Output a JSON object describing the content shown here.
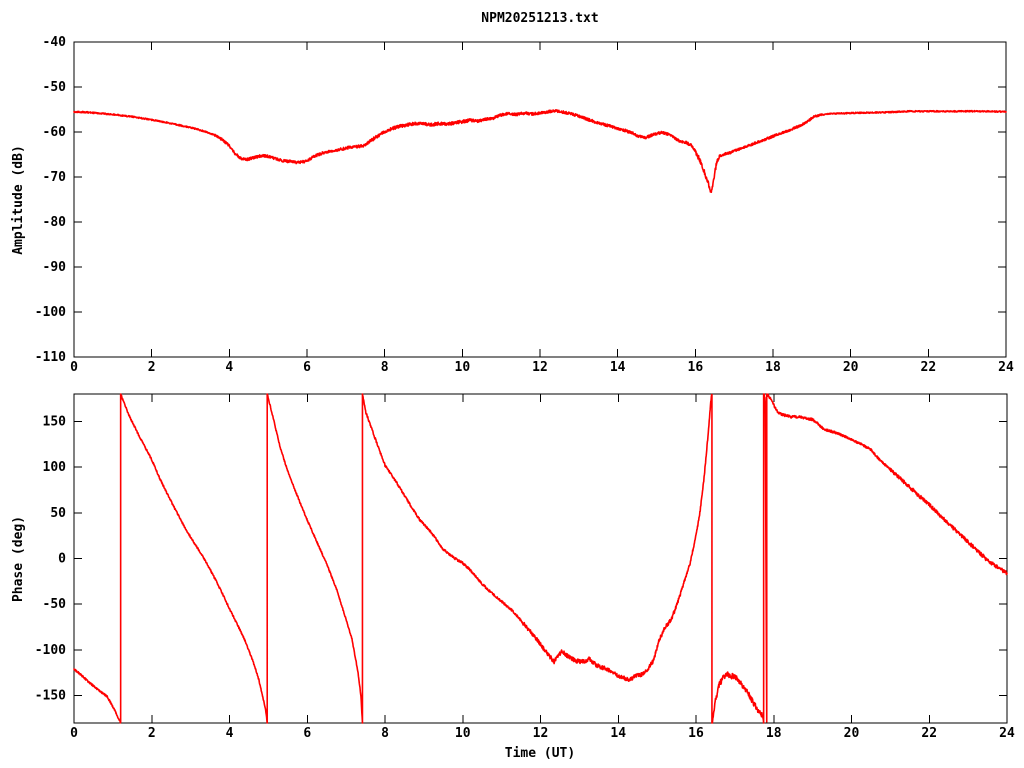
{
  "title": "NPM20251213.txt",
  "colors": {
    "trace": "#ff0000",
    "axis": "#000000",
    "background": "#ffffff"
  },
  "chart_data": [
    {
      "type": "line",
      "title": "NPM20251213.txt",
      "xlabel": "",
      "ylabel": "Amplitude (dB)",
      "xlim": [
        0,
        24
      ],
      "ylim": [
        -110,
        -40
      ],
      "xticks": [
        0,
        2,
        4,
        6,
        8,
        10,
        12,
        14,
        16,
        18,
        20,
        22,
        24
      ],
      "yticks": [
        -110,
        -100,
        -90,
        -80,
        -70,
        -60,
        -50,
        -40
      ],
      "grid": false,
      "legend": "none",
      "series": [
        {
          "name": "amplitude",
          "color": "#ff0000",
          "points": [
            [
              0,
              -55.5
            ],
            [
              0.3,
              -55.6
            ],
            [
              0.6,
              -55.8
            ],
            [
              1,
              -56.1
            ],
            [
              1.5,
              -56.6
            ],
            [
              2,
              -57.3
            ],
            [
              2.5,
              -58.1
            ],
            [
              3,
              -59
            ],
            [
              3.3,
              -59.7
            ],
            [
              3.6,
              -60.6
            ],
            [
              3.8,
              -61.6
            ],
            [
              4,
              -63
            ],
            [
              4.15,
              -64.8
            ],
            [
              4.3,
              -65.9
            ],
            [
              4.45,
              -66.1
            ],
            [
              4.6,
              -65.8
            ],
            [
              4.75,
              -65.4
            ],
            [
              4.9,
              -65.3
            ],
            [
              5.05,
              -65.5
            ],
            [
              5.2,
              -66
            ],
            [
              5.4,
              -66.4
            ],
            [
              5.6,
              -66.6
            ],
            [
              5.8,
              -66.8
            ],
            [
              6,
              -66.4
            ],
            [
              6.15,
              -65.6
            ],
            [
              6.3,
              -65
            ],
            [
              6.5,
              -64.4
            ],
            [
              6.7,
              -64.1
            ],
            [
              6.9,
              -63.8
            ],
            [
              7.1,
              -63.4
            ],
            [
              7.3,
              -63.2
            ],
            [
              7.45,
              -63.1
            ],
            [
              7.6,
              -62.2
            ],
            [
              7.8,
              -61
            ],
            [
              8,
              -59.9
            ],
            [
              8.2,
              -59.2
            ],
            [
              8.4,
              -58.7
            ],
            [
              8.6,
              -58.4
            ],
            [
              8.8,
              -58.1
            ],
            [
              9,
              -58.2
            ],
            [
              9.2,
              -58.4
            ],
            [
              9.4,
              -58.1
            ],
            [
              9.6,
              -58.3
            ],
            [
              9.8,
              -58
            ],
            [
              10,
              -57.7
            ],
            [
              10.2,
              -57.4
            ],
            [
              10.4,
              -57.6
            ],
            [
              10.6,
              -57.2
            ],
            [
              10.8,
              -56.9
            ],
            [
              11,
              -56.2
            ],
            [
              11.2,
              -55.9
            ],
            [
              11.4,
              -56.1
            ],
            [
              11.6,
              -55.8
            ],
            [
              11.8,
              -56
            ],
            [
              12,
              -55.8
            ],
            [
              12.2,
              -55.5
            ],
            [
              12.4,
              -55.3
            ],
            [
              12.6,
              -55.6
            ],
            [
              12.8,
              -55.9
            ],
            [
              13,
              -56.5
            ],
            [
              13.2,
              -57.1
            ],
            [
              13.4,
              -57.7
            ],
            [
              13.6,
              -58.2
            ],
            [
              13.8,
              -58.7
            ],
            [
              14,
              -59.2
            ],
            [
              14.2,
              -59.7
            ],
            [
              14.4,
              -60.3
            ],
            [
              14.55,
              -61
            ],
            [
              14.7,
              -61.3
            ],
            [
              14.85,
              -60.8
            ],
            [
              15,
              -60.4
            ],
            [
              15.15,
              -60.1
            ],
            [
              15.3,
              -60.5
            ],
            [
              15.45,
              -61.2
            ],
            [
              15.6,
              -62.1
            ],
            [
              15.75,
              -62.3
            ],
            [
              15.9,
              -63
            ],
            [
              16,
              -64.3
            ],
            [
              16.1,
              -66
            ],
            [
              16.2,
              -68.2
            ],
            [
              16.3,
              -70.5
            ],
            [
              16.38,
              -72.8
            ],
            [
              16.42,
              -73.3
            ],
            [
              16.48,
              -70
            ],
            [
              16.55,
              -66.8
            ],
            [
              16.62,
              -65.4
            ],
            [
              16.75,
              -64.9
            ],
            [
              16.9,
              -64.6
            ],
            [
              17.1,
              -63.9
            ],
            [
              17.3,
              -63.3
            ],
            [
              17.5,
              -62.6
            ],
            [
              17.7,
              -62
            ],
            [
              17.9,
              -61.3
            ],
            [
              18.1,
              -60.6
            ],
            [
              18.3,
              -60
            ],
            [
              18.5,
              -59.3
            ],
            [
              18.7,
              -58.6
            ],
            [
              18.9,
              -57.6
            ],
            [
              19.05,
              -56.6
            ],
            [
              19.2,
              -56.2
            ],
            [
              19.4,
              -56
            ],
            [
              19.7,
              -55.9
            ],
            [
              20,
              -55.8
            ],
            [
              20.5,
              -55.7
            ],
            [
              21,
              -55.6
            ],
            [
              21.5,
              -55.4
            ],
            [
              22,
              -55.4
            ],
            [
              22.5,
              -55.4
            ],
            [
              23,
              -55.4
            ],
            [
              23.5,
              -55.4
            ],
            [
              24,
              -55.5
            ]
          ],
          "noise_regions": [
            {
              "from": 0,
              "to": 3.6,
              "amp": 0.15
            },
            {
              "from": 3.6,
              "to": 7.5,
              "amp": 0.3
            },
            {
              "from": 7.5,
              "to": 10.5,
              "amp": 0.35
            },
            {
              "from": 10.5,
              "to": 16,
              "amp": 0.3
            },
            {
              "from": 16,
              "to": 16.6,
              "amp": 0.5
            },
            {
              "from": 16.6,
              "to": 19.2,
              "amp": 0.25
            },
            {
              "from": 19.2,
              "to": 24,
              "amp": 0.15
            }
          ]
        }
      ]
    },
    {
      "type": "line",
      "title": "",
      "xlabel": "Time (UT)",
      "ylabel": "Phase (deg)",
      "xlim": [
        0,
        24
      ],
      "ylim": [
        -180,
        180
      ],
      "xticks": [
        0,
        2,
        4,
        6,
        8,
        10,
        12,
        14,
        16,
        18,
        20,
        22,
        24
      ],
      "yticks": [
        -150,
        -100,
        -50,
        0,
        50,
        100,
        150
      ],
      "grid": false,
      "legend": "none",
      "series": [
        {
          "name": "phase",
          "color": "#ff0000",
          "points": [
            [
              0,
              -121
            ],
            [
              0.2,
              -128
            ],
            [
              0.4,
              -136
            ],
            [
              0.55,
              -141
            ],
            [
              0.7,
              -146
            ],
            [
              0.85,
              -151
            ],
            [
              1,
              -162
            ],
            [
              1.1,
              -171
            ],
            [
              1.2,
              -180
            ],
            [
              1.2,
              180
            ],
            [
              1.4,
              158
            ],
            [
              1.7,
              132
            ],
            [
              2,
              108
            ],
            [
              2.2,
              88
            ],
            [
              2.55,
              58
            ],
            [
              2.9,
              30
            ],
            [
              3.2,
              10
            ],
            [
              3.4,
              -4
            ],
            [
              3.7,
              -28
            ],
            [
              4,
              -55
            ],
            [
              4.2,
              -72
            ],
            [
              4.4,
              -90
            ],
            [
              4.6,
              -112
            ],
            [
              4.75,
              -132
            ],
            [
              4.85,
              -150
            ],
            [
              4.93,
              -166
            ],
            [
              4.97,
              -180
            ],
            [
              4.97,
              180
            ],
            [
              5.1,
              158
            ],
            [
              5.3,
              122
            ],
            [
              5.5,
              95
            ],
            [
              5.75,
              68
            ],
            [
              6,
              42
            ],
            [
              6.25,
              18
            ],
            [
              6.5,
              -6
            ],
            [
              6.75,
              -33
            ],
            [
              7,
              -67
            ],
            [
              7.15,
              -88
            ],
            [
              7.3,
              -123
            ],
            [
              7.38,
              -150
            ],
            [
              7.42,
              -180
            ],
            [
              7.42,
              180
            ],
            [
              7.5,
              161
            ],
            [
              7.8,
              125
            ],
            [
              8,
              102
            ],
            [
              8.3,
              83
            ],
            [
              8.6,
              62
            ],
            [
              8.9,
              42
            ],
            [
              9.2,
              28
            ],
            [
              9.5,
              10
            ],
            [
              9.8,
              0
            ],
            [
              10,
              -5
            ],
            [
              10.2,
              -13
            ],
            [
              10.5,
              -28
            ],
            [
              10.8,
              -40
            ],
            [
              11,
              -47
            ],
            [
              11.3,
              -58
            ],
            [
              11.6,
              -73
            ],
            [
              11.9,
              -88
            ],
            [
              12.1,
              -100
            ],
            [
              12.35,
              -113
            ],
            [
              12.55,
              -101
            ],
            [
              12.7,
              -107
            ],
            [
              12.9,
              -112
            ],
            [
              13.1,
              -113
            ],
            [
              13.25,
              -110
            ],
            [
              13.45,
              -117
            ],
            [
              13.7,
              -121
            ],
            [
              13.9,
              -126
            ],
            [
              14.1,
              -130
            ],
            [
              14.3,
              -133
            ],
            [
              14.45,
              -128
            ],
            [
              14.6,
              -127
            ],
            [
              14.75,
              -122
            ],
            [
              14.9,
              -112
            ],
            [
              15.05,
              -90
            ],
            [
              15.2,
              -75
            ],
            [
              15.35,
              -68
            ],
            [
              15.5,
              -52
            ],
            [
              15.7,
              -25
            ],
            [
              15.85,
              -5
            ],
            [
              16,
              25
            ],
            [
              16.1,
              50
            ],
            [
              16.2,
              85
            ],
            [
              16.3,
              130
            ],
            [
              16.38,
              172
            ],
            [
              16.41,
              180
            ],
            [
              16.41,
              -180
            ],
            [
              16.5,
              -155
            ],
            [
              16.6,
              -138
            ],
            [
              16.7,
              -130
            ],
            [
              16.8,
              -127
            ],
            [
              16.95,
              -129
            ],
            [
              17.1,
              -133
            ],
            [
              17.25,
              -142
            ],
            [
              17.4,
              -152
            ],
            [
              17.55,
              -163
            ],
            [
              17.7,
              -172
            ],
            [
              17.74,
              -180
            ],
            [
              17.74,
              180
            ],
            [
              17.78,
              174
            ],
            [
              17.82,
              -180
            ],
            [
              17.82,
              180
            ],
            [
              17.9,
              176
            ],
            [
              18,
              168
            ],
            [
              18.1,
              160
            ],
            [
              18.25,
              157
            ],
            [
              18.45,
              155
            ],
            [
              18.65,
              155
            ],
            [
              18.85,
              153
            ],
            [
              19,
              152
            ],
            [
              19.15,
              147
            ],
            [
              19.3,
              141
            ],
            [
              19.5,
              139
            ],
            [
              19.7,
              136
            ],
            [
              19.9,
              132
            ],
            [
              20.1,
              128
            ],
            [
              20.3,
              124
            ],
            [
              20.5,
              119
            ],
            [
              20.7,
              109
            ],
            [
              20.9,
              101
            ],
            [
              21.1,
              93
            ],
            [
              21.4,
              82
            ],
            [
              21.7,
              70
            ],
            [
              22,
              59
            ],
            [
              22.3,
              46
            ],
            [
              22.6,
              34
            ],
            [
              22.9,
              22
            ],
            [
              23.2,
              10
            ],
            [
              23.5,
              -2
            ],
            [
              23.8,
              -11
            ],
            [
              24,
              -16
            ]
          ],
          "noise_regions": [
            {
              "from": 0,
              "to": 7.45,
              "amp": 1.0
            },
            {
              "from": 7.45,
              "to": 11.5,
              "amp": 1.2
            },
            {
              "from": 11.5,
              "to": 15.6,
              "amp": 2.2
            },
            {
              "from": 15.6,
              "to": 16.41,
              "amp": 1.5
            },
            {
              "from": 16.41,
              "to": 17.85,
              "amp": 3.0
            },
            {
              "from": 17.85,
              "to": 19.6,
              "amp": 1.3
            },
            {
              "from": 19.6,
              "to": 21,
              "amp": 1.2
            },
            {
              "from": 21,
              "to": 24,
              "amp": 2.0
            }
          ]
        }
      ]
    }
  ]
}
